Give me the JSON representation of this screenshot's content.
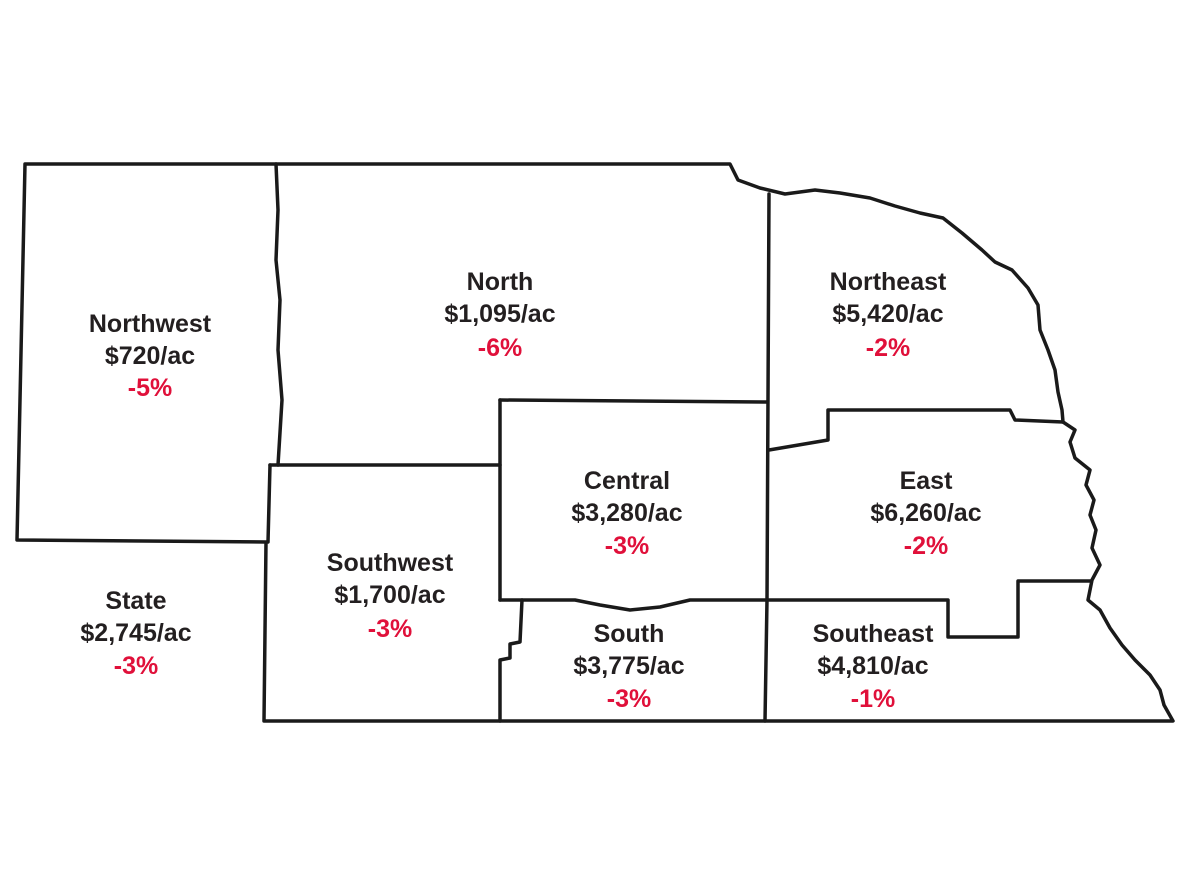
{
  "colors": {
    "outline": "#1a1a1a",
    "label": "#231f20",
    "change": "#e0103a",
    "background": "#ffffff"
  },
  "regions": {
    "northwest": {
      "name": "Northwest",
      "value": "$720/ac",
      "change": "-5%"
    },
    "north": {
      "name": "North",
      "value": "$1,095/ac",
      "change": "-6%"
    },
    "northeast": {
      "name": "Northeast",
      "value": "$5,420/ac",
      "change": "-2%"
    },
    "central": {
      "name": "Central",
      "value": "$3,280/ac",
      "change": "-3%"
    },
    "east": {
      "name": "East",
      "value": "$6,260/ac",
      "change": "-2%"
    },
    "southwest": {
      "name": "Southwest",
      "value": "$1,700/ac",
      "change": "-3%"
    },
    "south": {
      "name": "South",
      "value": "$3,775/ac",
      "change": "-3%"
    },
    "southeast": {
      "name": "Southeast",
      "value": "$4,810/ac",
      "change": "-1%"
    }
  },
  "state": {
    "name": "State",
    "value": "$2,745/ac",
    "change": "-3%"
  }
}
